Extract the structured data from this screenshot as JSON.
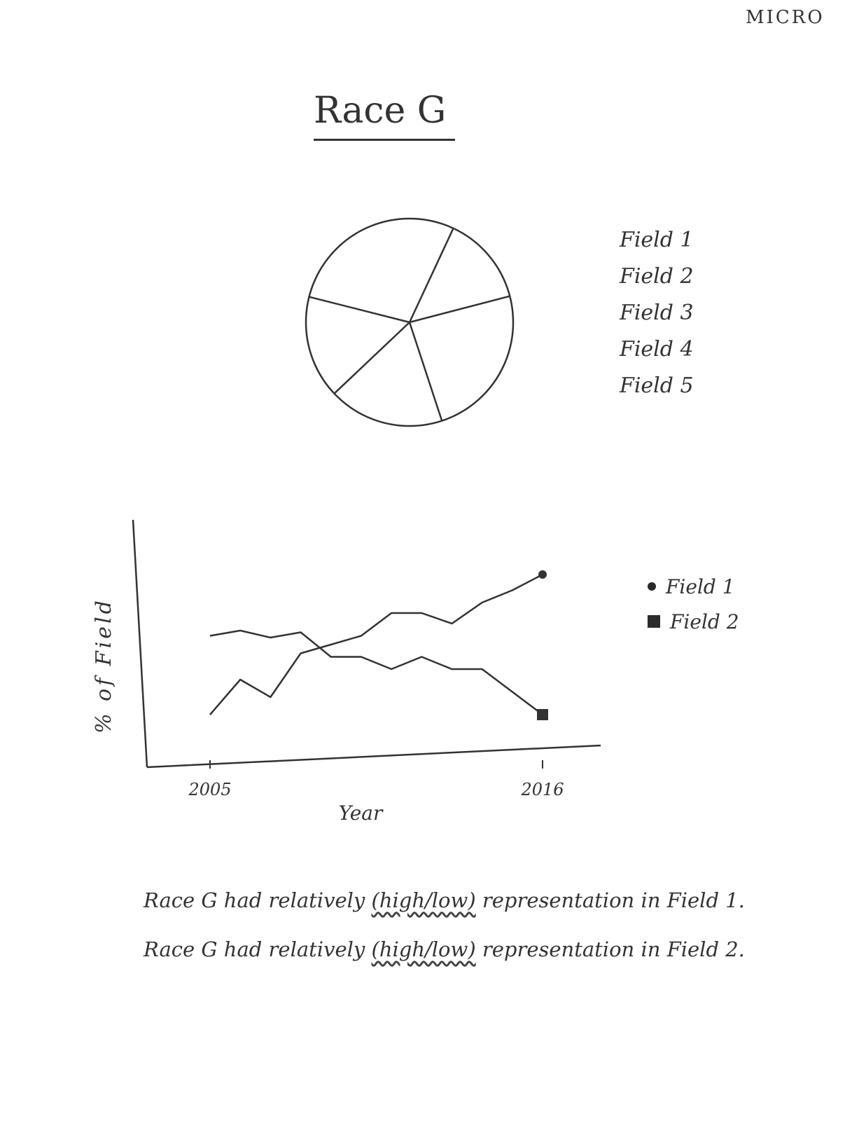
{
  "corner_label": "MICRO",
  "title": "Race G",
  "pie": {
    "legend": [
      "Field 1",
      "Field 2",
      "Field 3",
      "Field 4",
      "Field 5"
    ],
    "chart_data": {
      "type": "pie",
      "slices": [
        {
          "label": "Field 1",
          "value": 14
        },
        {
          "label": "Field 2",
          "value": 24
        },
        {
          "label": "Field 3",
          "value": 18
        },
        {
          "label": "Field 4",
          "value": 16
        },
        {
          "label": "Field 5",
          "value": 28
        }
      ]
    }
  },
  "line": {
    "chart_data": {
      "type": "line",
      "x": [
        2005,
        2006,
        2007,
        2008,
        2009,
        2010,
        2011,
        2012,
        2013,
        2014,
        2015,
        2016
      ],
      "series": [
        {
          "name": "Field 1",
          "marker": "circle",
          "values": [
            3,
            5,
            4,
            6.5,
            7,
            7.5,
            8.8,
            8.8,
            8.2,
            9.4,
            10.1,
            11
          ]
        },
        {
          "name": "Field 2",
          "marker": "square",
          "values": [
            7.5,
            7.8,
            7.4,
            7.7,
            6.3,
            6.3,
            5.6,
            6.3,
            5.6,
            5.6,
            4.3,
            3
          ]
        }
      ],
      "xlabel": "Year",
      "ylabel": "% of Field",
      "x_ticks": [
        "2005",
        "2016"
      ],
      "ylim": [
        0,
        14
      ],
      "legend": "right",
      "grid": false
    },
    "legend": [
      "Field 1",
      "Field 2"
    ]
  },
  "statements": [
    {
      "prefix": "Race G had relatively",
      "choice": "(high/low)",
      "suffix": "representation in Field 1."
    },
    {
      "prefix": "Race G had relatively",
      "choice": "(high/low)",
      "suffix": "representation in Field 2."
    }
  ]
}
